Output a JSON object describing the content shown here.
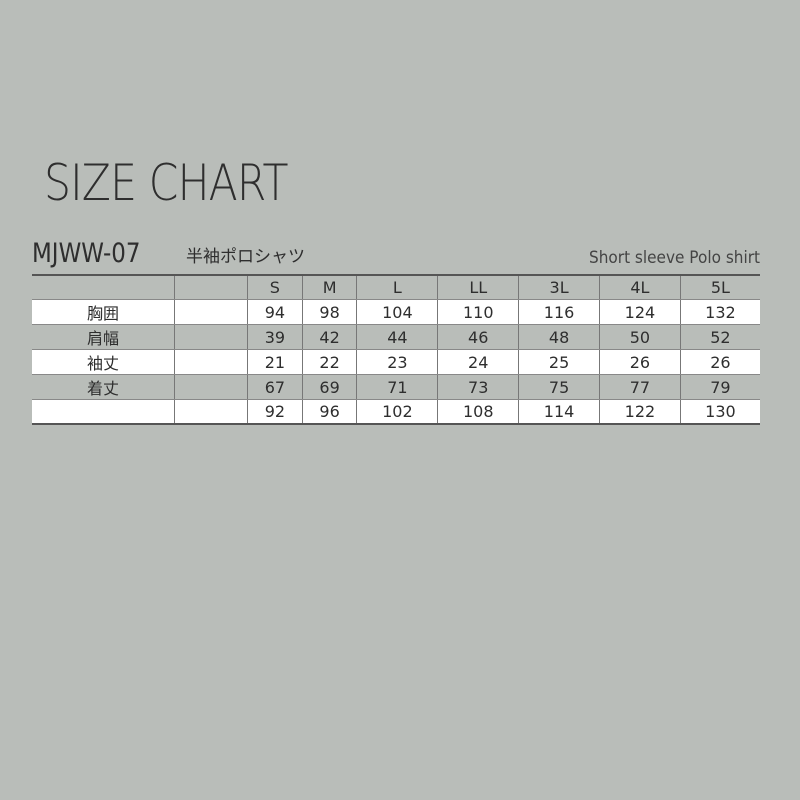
{
  "title": "SIZE CHART",
  "model": "MJWW-07",
  "product_jp": "半袖ポロシャツ",
  "product_en": "Short sleeve Polo shirt",
  "table": {
    "headers": [
      "",
      "",
      "S",
      "M",
      "L",
      "LL",
      "3L",
      "4L",
      "5L"
    ],
    "rows": [
      {
        "label": "胸囲",
        "sub": "",
        "values": [
          "94",
          "98",
          "104",
          "110",
          "116",
          "124",
          "132"
        ]
      },
      {
        "label": "肩幅",
        "sub": "",
        "values": [
          "39",
          "42",
          "44",
          "46",
          "48",
          "50",
          "52"
        ]
      },
      {
        "label": "袖丈",
        "sub": "",
        "values": [
          "21",
          "22",
          "23",
          "24",
          "25",
          "26",
          "26"
        ]
      },
      {
        "label": "着丈",
        "sub": "",
        "values": [
          "67",
          "69",
          "71",
          "73",
          "75",
          "77",
          "79"
        ]
      },
      {
        "label": "",
        "sub": "",
        "values": [
          "92",
          "96",
          "102",
          "108",
          "114",
          "122",
          "130"
        ]
      }
    ]
  }
}
